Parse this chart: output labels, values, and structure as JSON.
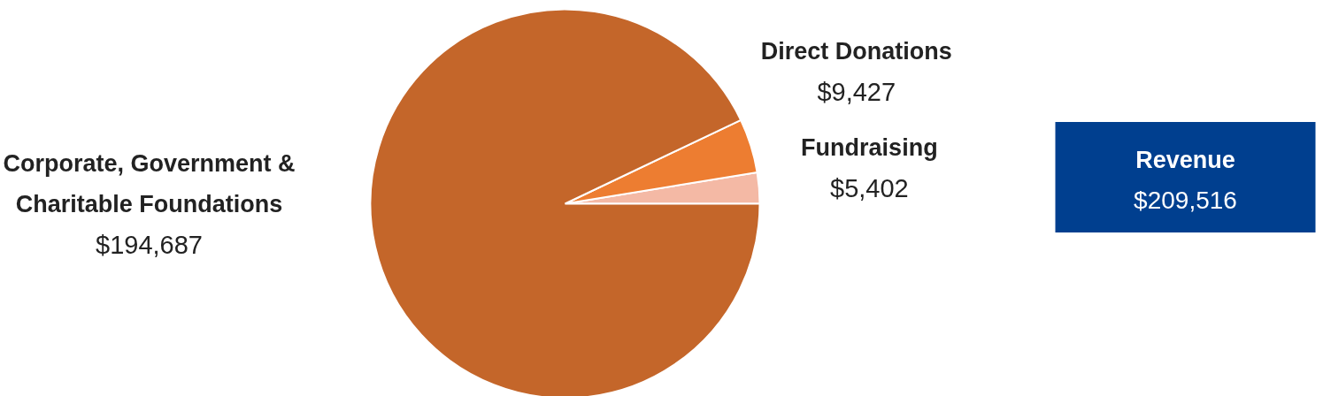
{
  "chart_data": {
    "type": "pie",
    "categories": [
      "Fundraising",
      "Direct Donations",
      "Corporate, Government & Charitable Foundations"
    ],
    "values": [
      5402,
      9427,
      194687
    ],
    "colors": [
      "#f4b9a5",
      "#ed7d31",
      "#c4662a"
    ],
    "value_labels": [
      "$5,402",
      "$9,427",
      "$194,687"
    ],
    "annotations": [
      "Revenue",
      "$209,516"
    ]
  }
}
